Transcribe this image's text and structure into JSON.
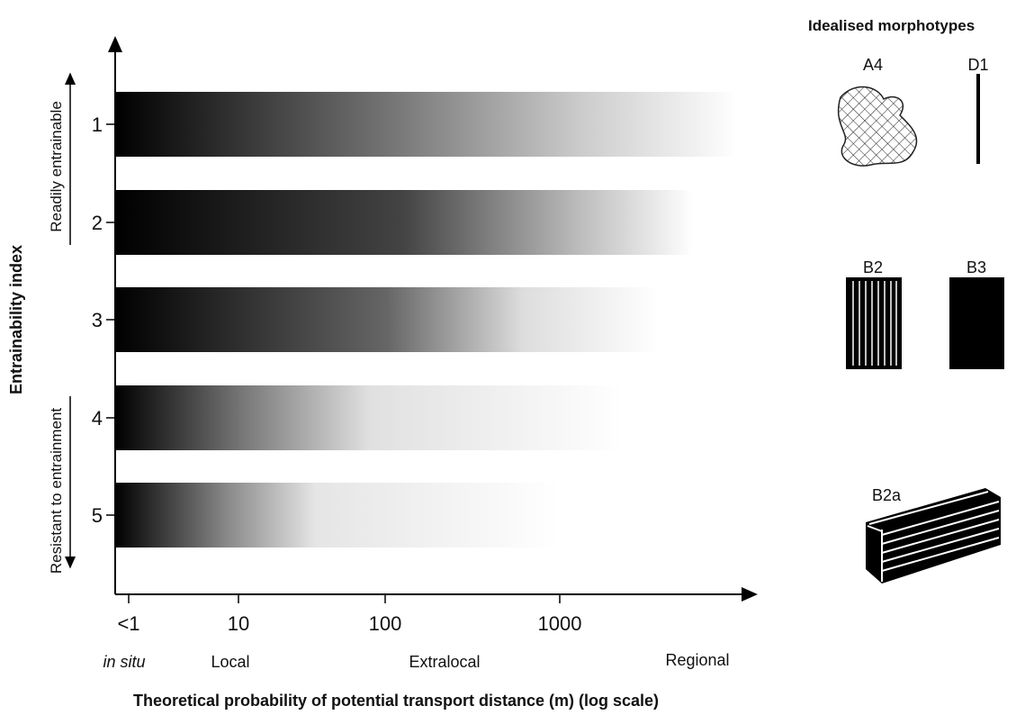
{
  "y_axis": {
    "title": "Entrainability index",
    "labels": [
      "1",
      "2",
      "3",
      "4",
      "5"
    ],
    "top_arrow": "Readily entrainable",
    "bottom_arrow": "Resistant to entrainment"
  },
  "x_axis": {
    "title": "Theoretical probability of potential transport distance (m) (log scale)",
    "ticks": [
      "<1",
      "10",
      "100",
      "1000"
    ],
    "zones": [
      "in situ",
      "Local",
      "Extralocal",
      "Regional"
    ]
  },
  "morphotypes": {
    "title": "Idealised morphotypes",
    "items": [
      "A4",
      "D1",
      "B2",
      "B3",
      "B2a"
    ]
  }
}
